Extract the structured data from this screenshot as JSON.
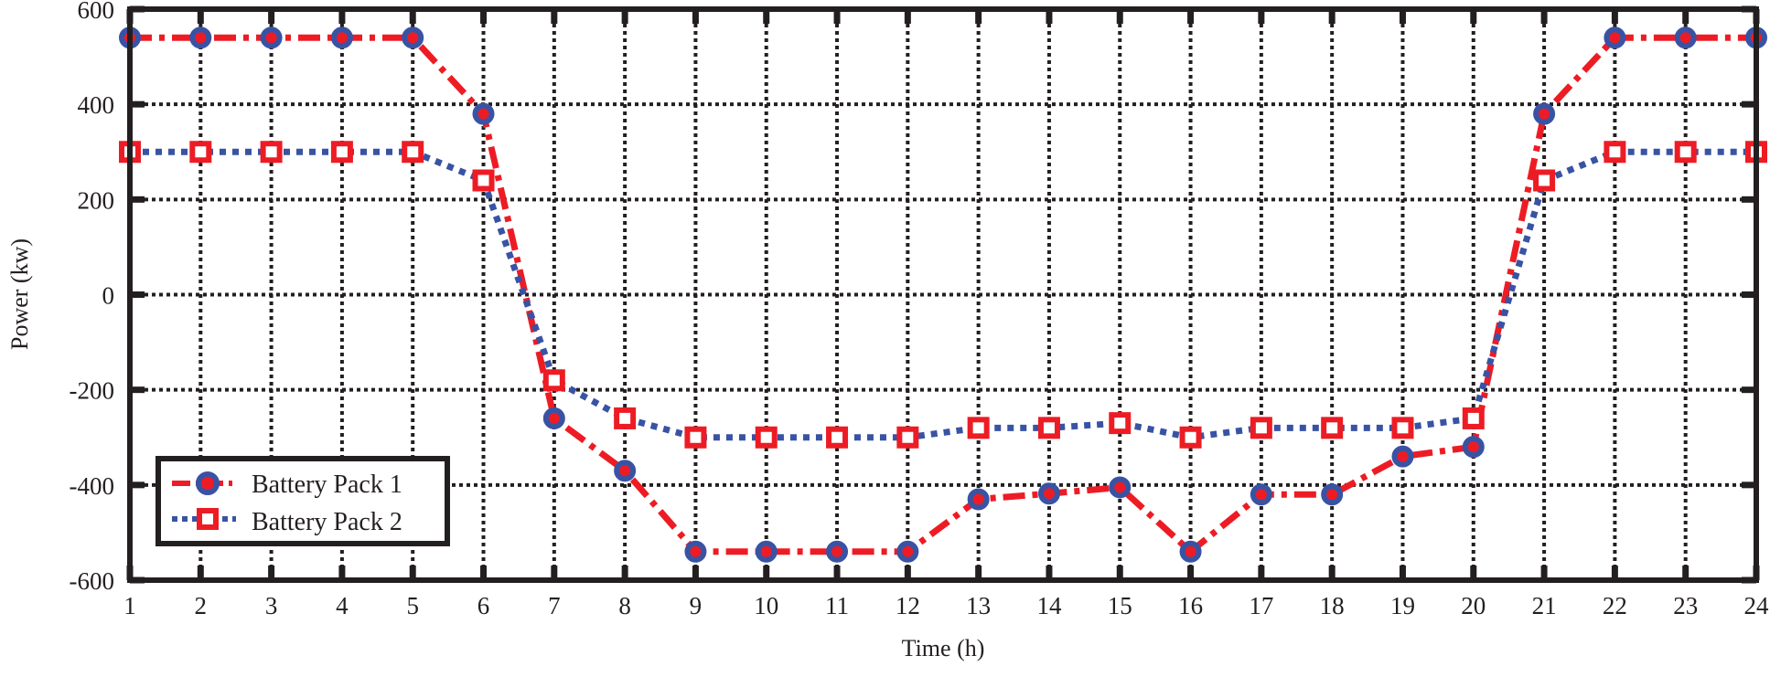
{
  "chart_data": {
    "type": "line",
    "title": "",
    "xlabel": "Time (h)",
    "ylabel": "Power (kw)",
    "xlim": [
      1,
      24
    ],
    "ylim": [
      -600,
      600
    ],
    "xticks": [
      1,
      2,
      3,
      4,
      5,
      6,
      7,
      8,
      9,
      10,
      11,
      12,
      13,
      14,
      15,
      16,
      17,
      18,
      19,
      20,
      21,
      22,
      23,
      24
    ],
    "yticks": [
      600,
      400,
      200,
      0,
      -200,
      -400,
      -600
    ],
    "grid": true,
    "legend_position": "lower-left",
    "x": [
      1,
      2,
      3,
      4,
      5,
      6,
      7,
      8,
      9,
      10,
      11,
      12,
      13,
      14,
      15,
      16,
      17,
      18,
      19,
      20,
      21,
      22,
      23,
      24
    ],
    "series": [
      {
        "name": "Battery Pack 1",
        "line_color": "#ed1c24",
        "marker_color": "#3953a4",
        "line_style": "dash-dot",
        "marker": "circle",
        "values": [
          540,
          540,
          540,
          540,
          540,
          380,
          -260,
          -370,
          -540,
          -540,
          -540,
          -540,
          -430,
          -418,
          -405,
          -540,
          -420,
          -420,
          -340,
          -320,
          380,
          540,
          540,
          540
        ]
      },
      {
        "name": "Battery Pack 2",
        "line_color": "#3953a4",
        "marker_color": "#ed1c24",
        "line_style": "dotted",
        "marker": "square",
        "values": [
          300,
          300,
          300,
          300,
          300,
          240,
          -180,
          -260,
          -300,
          -300,
          -300,
          -300,
          -280,
          -280,
          -270,
          -300,
          -280,
          -280,
          -280,
          -260,
          240,
          300,
          300,
          300
        ]
      }
    ]
  }
}
